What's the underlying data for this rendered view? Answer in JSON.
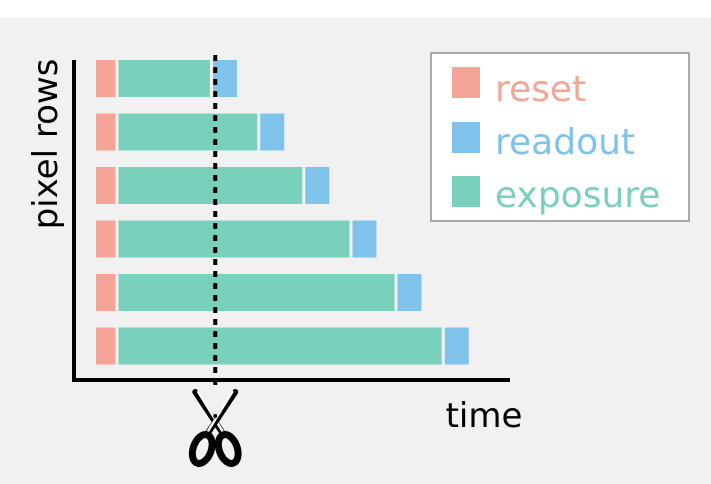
{
  "diagram": {
    "ylabel": "pixel rows",
    "xlabel": "time",
    "colors": {
      "background": "#f1f1f1",
      "reset": "#f5a597",
      "readout": "#7fc3ea",
      "exposure": "#7ad1bb",
      "axis": "#000000",
      "legend_border": "#a8a8a8"
    },
    "legend": [
      {
        "key": "reset",
        "label": "reset"
      },
      {
        "key": "readout",
        "label": "readout"
      },
      {
        "key": "exposure",
        "label": "exposure"
      }
    ],
    "rows": [
      {
        "reset": 1,
        "exposure": 4.2,
        "readout": 1.2
      },
      {
        "reset": 1,
        "exposure": 6.3,
        "readout": 1.2
      },
      {
        "reset": 1,
        "exposure": 8.3,
        "readout": 1.2
      },
      {
        "reset": 1,
        "exposure": 10.4,
        "readout": 1.2
      },
      {
        "reset": 1,
        "exposure": 12.4,
        "readout": 1.2
      },
      {
        "reset": 1,
        "exposure": 14.5,
        "readout": 1.2
      }
    ],
    "cut_time": 5.3,
    "cut_icon": "scissors-icon"
  }
}
